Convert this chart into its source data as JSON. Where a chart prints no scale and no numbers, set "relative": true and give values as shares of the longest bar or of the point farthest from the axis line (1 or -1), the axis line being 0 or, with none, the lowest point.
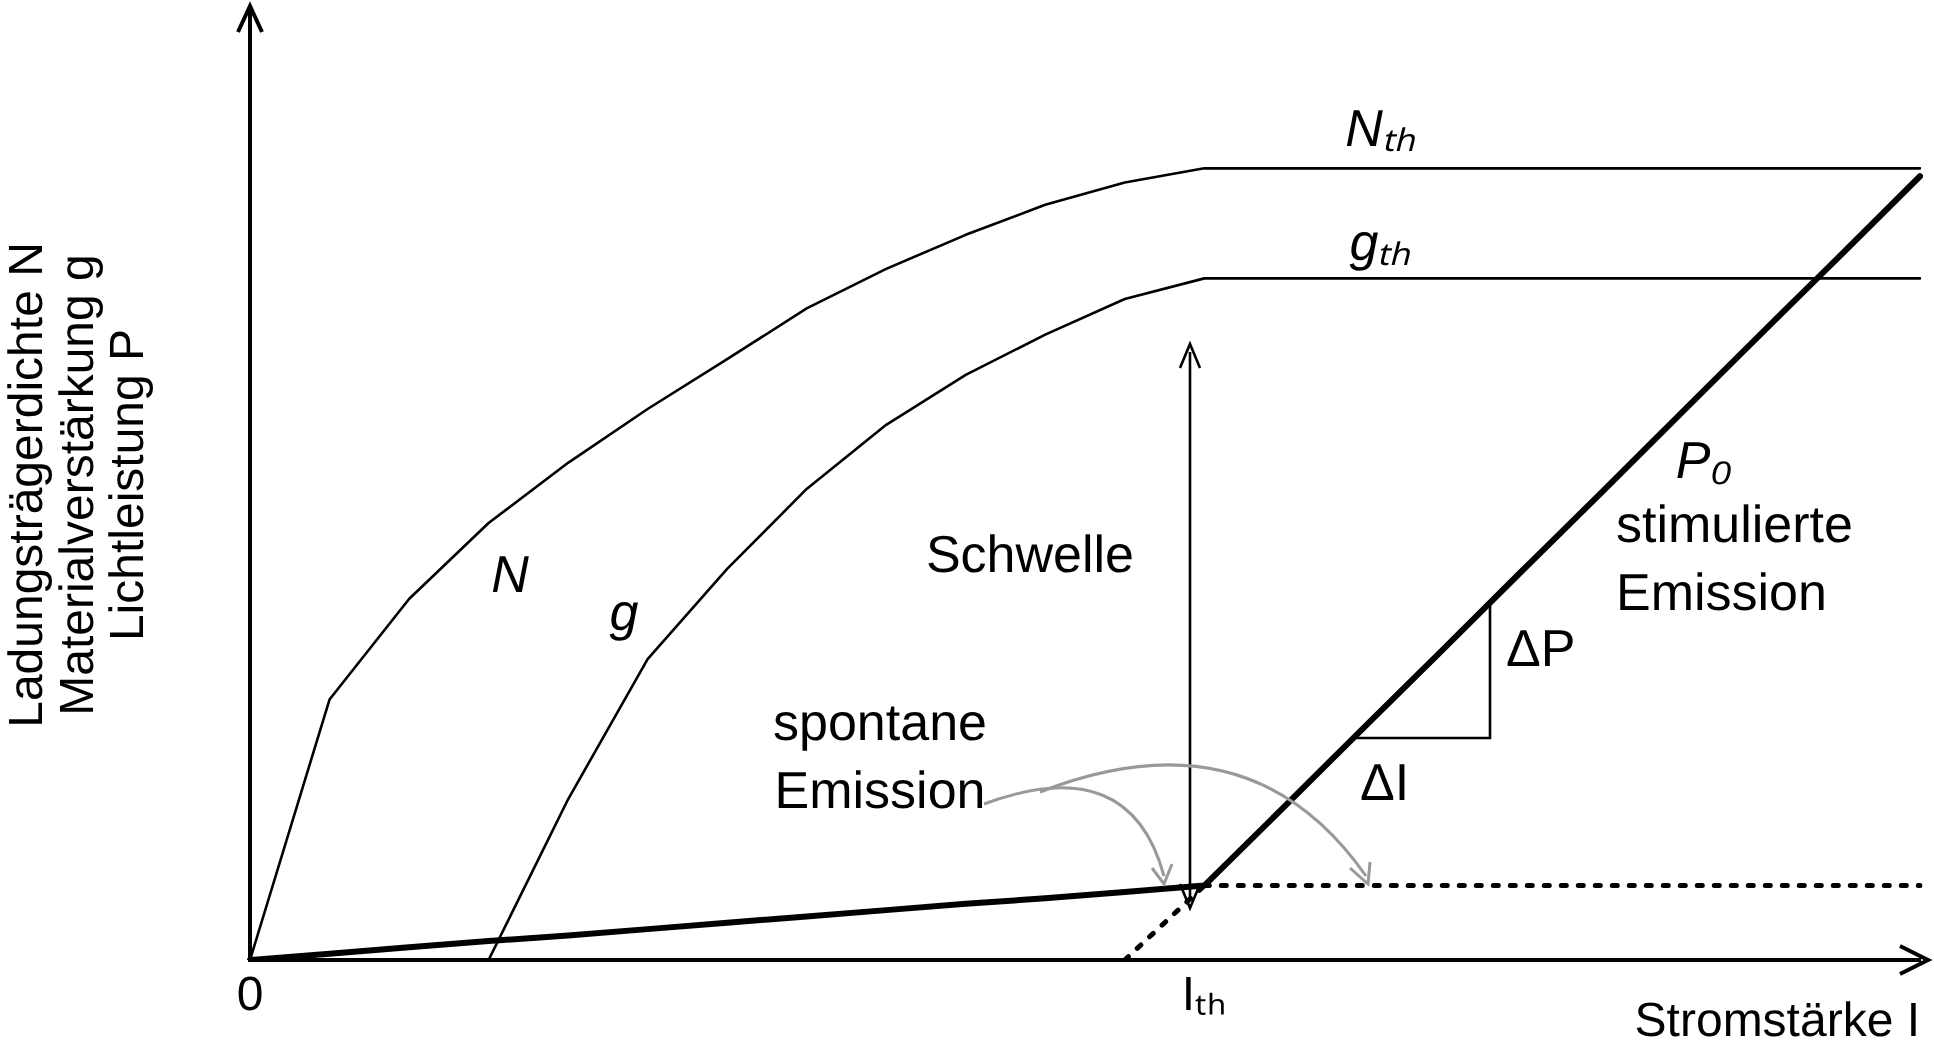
{
  "chart_data": {
    "type": "line",
    "relative": true,
    "marker": "none",
    "categories": [
      "0",
      null,
      null,
      null,
      null,
      null,
      null,
      null,
      null,
      null,
      null,
      null,
      "Iₜₕ",
      null,
      null,
      null,
      null,
      null,
      null,
      null,
      null,
      null
    ],
    "xlabel": "Stromstärke I",
    "ylabel": "Ladungsträgerdichte N\nMaterialverstärkung g\nLichtleistung P",
    "series": [
      {
        "name": "N",
        "color": "#000000",
        "line_style": "solid",
        "values": [
          0,
          0.329,
          0.456,
          0.552,
          0.628,
          0.696,
          0.759,
          0.823,
          0.873,
          0.916,
          0.954,
          0.982,
          1,
          1,
          1,
          1,
          1,
          1,
          1,
          1,
          1,
          1
        ]
      },
      {
        "name": "g",
        "color": "#000000",
        "line_style": "solid",
        "values": [
          null,
          null,
          null,
          0,
          0.203,
          0.38,
          0.494,
          0.595,
          0.676,
          0.739,
          0.79,
          0.835,
          0.861,
          0.861,
          0.861,
          0.861,
          0.861,
          0.861,
          0.861,
          0.861,
          0.861,
          0.861
        ]
      },
      {
        "name": "P₀",
        "color": "#000000",
        "line_style": "solid",
        "values": [
          0,
          0.008,
          0.016,
          0.024,
          0.031,
          0.039,
          0.047,
          0.055,
          0.063,
          0.071,
          0.078,
          0.086,
          0.094,
          0.193,
          0.293,
          0.392,
          0.492,
          0.591,
          0.691,
          0.791,
          0.89,
          0.99
        ]
      },
      {
        "color": "#000000",
        "line_style": "dotted",
        "values": [
          null,
          null,
          null,
          null,
          null,
          null,
          null,
          null,
          null,
          null,
          null,
          0,
          0.094,
          null,
          null,
          null,
          null,
          null,
          null,
          null,
          null,
          null
        ]
      },
      {
        "color": "#000000",
        "line_style": "dotted",
        "values": [
          null,
          null,
          null,
          null,
          null,
          null,
          null,
          null,
          null,
          null,
          null,
          null,
          0.094,
          0.094,
          0.094,
          0.094,
          0.094,
          0.094,
          0.094,
          0.094,
          0.094,
          0.094
        ]
      }
    ],
    "annotations": [
      "Nₜₕ",
      "gₜₕ",
      "Schwelle",
      "spontane\nEmission",
      "stimulierte\nEmission",
      "ΔP",
      "ΔI"
    ]
  }
}
